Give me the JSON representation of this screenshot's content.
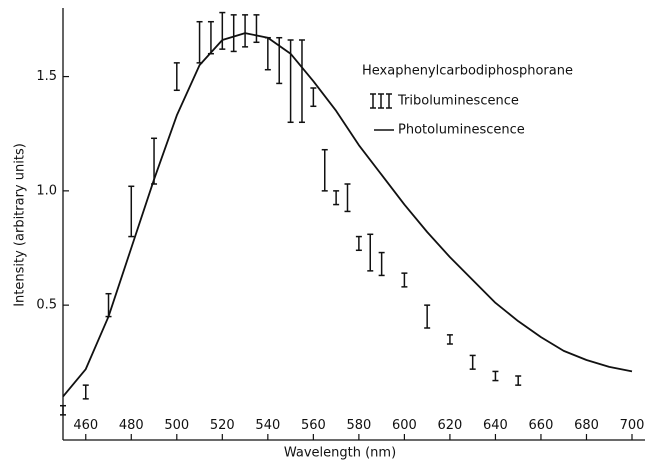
{
  "chart_data": {
    "type": "line",
    "x_label": "Wavelength (nm)",
    "y_label": "Intensity (arbitrary units)",
    "legend_title": "Hexaphenylcarbodiphosphorane",
    "xlim": [
      450,
      700
    ],
    "ylim": [
      -0.09,
      1.8
    ],
    "xticks": [
      460,
      480,
      500,
      520,
      540,
      560,
      580,
      600,
      620,
      640,
      660,
      680,
      700
    ],
    "yticks": [
      {
        "value": 0.5,
        "label": "0.5"
      },
      {
        "value": 1.0,
        "label": "1.0"
      },
      {
        "value": 1.5,
        "label": "1.5"
      }
    ],
    "series": [
      {
        "name": "Triboluminescence",
        "color": "#111111",
        "style": "errorbar",
        "x": [
          450,
          460,
          470,
          480,
          490,
          500,
          510,
          515,
          520,
          525,
          530,
          535,
          540,
          545,
          550,
          555,
          560,
          565,
          570,
          575,
          580,
          585,
          590,
          600,
          610,
          620,
          630,
          640,
          650
        ],
        "values": [
          0.04,
          0.12,
          0.5,
          0.91,
          1.13,
          1.5,
          1.65,
          1.67,
          1.7,
          1.69,
          1.7,
          1.71,
          1.6,
          1.57,
          1.48,
          1.48,
          1.41,
          1.09,
          0.97,
          0.97,
          0.77,
          0.73,
          0.68,
          0.61,
          0.45,
          0.35,
          0.25,
          0.19,
          0.17
        ],
        "errors": [
          0.02,
          0.03,
          0.05,
          0.11,
          0.1,
          0.06,
          0.09,
          0.07,
          0.08,
          0.08,
          0.07,
          0.06,
          0.07,
          0.1,
          0.18,
          0.18,
          0.04,
          0.09,
          0.03,
          0.06,
          0.03,
          0.08,
          0.05,
          0.03,
          0.05,
          0.02,
          0.03,
          0.02,
          0.02
        ]
      },
      {
        "name": "Photoluminescence",
        "color": "#111111",
        "style": "line",
        "x": [
          450,
          460,
          470,
          480,
          490,
          500,
          510,
          520,
          530,
          540,
          550,
          560,
          570,
          580,
          590,
          600,
          610,
          620,
          630,
          640,
          650,
          660,
          670,
          680,
          690,
          700
        ],
        "values": [
          0.1,
          0.22,
          0.45,
          0.75,
          1.05,
          1.33,
          1.55,
          1.66,
          1.69,
          1.67,
          1.6,
          1.48,
          1.35,
          1.2,
          1.07,
          0.94,
          0.82,
          0.71,
          0.61,
          0.51,
          0.43,
          0.36,
          0.3,
          0.26,
          0.23,
          0.21
        ]
      }
    ]
  }
}
